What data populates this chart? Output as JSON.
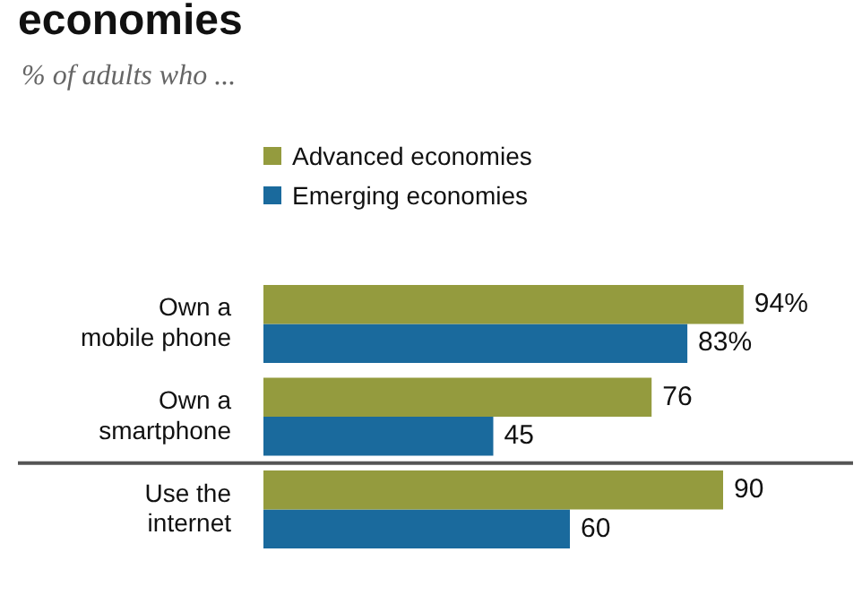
{
  "chart_data": {
    "type": "bar",
    "orientation": "horizontal",
    "title": "economies",
    "subtitle": "% of adults who ...",
    "categories": [
      "Own a mobile phone",
      "Own a smartphone",
      "Use the internet"
    ],
    "series": [
      {
        "name": "Advanced economies",
        "color": "#949b3e",
        "values": [
          94,
          76,
          90
        ],
        "value_labels": [
          "94%",
          "76",
          "90"
        ]
      },
      {
        "name": "Emerging economies",
        "color": "#1a6a9d",
        "values": [
          83,
          45,
          60
        ],
        "value_labels": [
          "83%",
          "45",
          "60"
        ]
      }
    ],
    "tick_labels": "y",
    "legend": "top"
  }
}
